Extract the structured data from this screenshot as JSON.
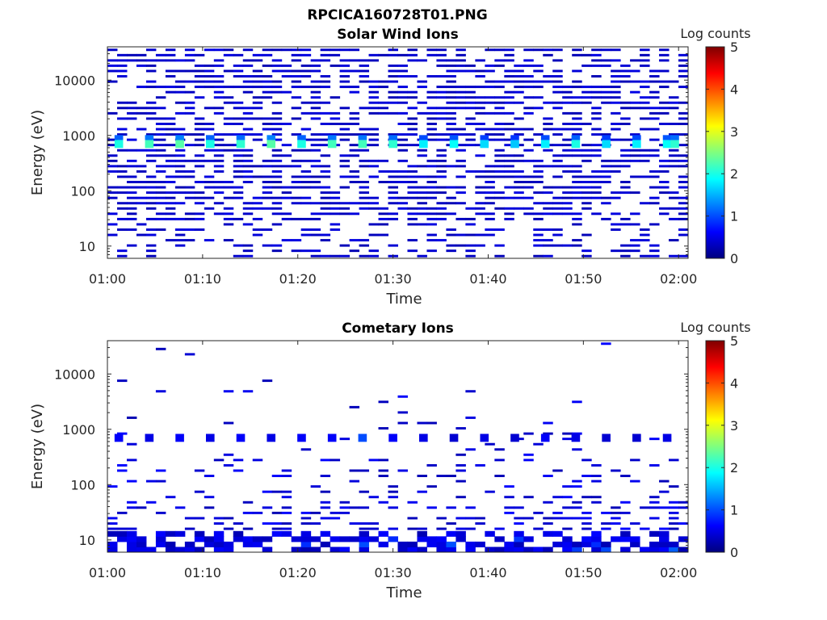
{
  "figure_title": "RPCICA160728T01.PNG",
  "colormap_stops": [
    "#00007f",
    "#0000ff",
    "#007fff",
    "#00ffff",
    "#7fff7f",
    "#ffff00",
    "#ff7f00",
    "#ff0000",
    "#7f0000"
  ],
  "chart_data": [
    {
      "type": "heatmap",
      "title": "Solar Wind Ions",
      "xlabel": "Time",
      "ylabel": "Energy (eV)",
      "x_ticks": [
        "01:00",
        "01:10",
        "01:20",
        "01:30",
        "01:40",
        "01:50",
        "02:00"
      ],
      "x_range_minutes": [
        0,
        61
      ],
      "y_ticks": [
        "10",
        "100",
        "1000",
        "10000"
      ],
      "y_scale": "log",
      "y_range": [
        6,
        40000
      ],
      "colorbar": {
        "label": "Log counts",
        "ticks": [
          "0",
          "1",
          "2",
          "3",
          "4",
          "5"
        ],
        "range": [
          0,
          5
        ]
      },
      "description": "Dense noise (~0-0.5 log counts) at all energies; periodic peaks near 700 eV every ~3.2 min reaching ~2 log counts",
      "peak_energy_eV": 700,
      "peak_times_minutes": [
        1.2,
        4.4,
        7.6,
        10.8,
        14.0,
        17.2,
        20.4,
        23.6,
        26.8,
        30.0,
        33.2,
        36.4,
        39.6,
        42.8,
        46.0,
        49.2,
        52.4,
        55.6,
        58.8,
        59.6
      ],
      "peak_values": [
        2.0,
        2.2,
        2.3,
        2.0,
        2.1,
        2.3,
        2.0,
        2.2,
        2.2,
        2.1,
        1.8,
        1.9,
        1.7,
        1.6,
        1.8,
        2.0,
        1.7,
        1.8,
        1.9,
        2.1
      ]
    },
    {
      "type": "heatmap",
      "title": "Cometary Ions",
      "xlabel": "Time",
      "ylabel": "Energy (eV)",
      "x_ticks": [
        "01:00",
        "01:10",
        "01:20",
        "01:30",
        "01:40",
        "01:50",
        "02:00"
      ],
      "x_range_minutes": [
        0,
        61
      ],
      "y_ticks": [
        "10",
        "100",
        "1000",
        "10000"
      ],
      "y_scale": "log",
      "y_range": [
        6,
        40000
      ],
      "colorbar": {
        "label": "Log counts",
        "ticks": [
          "0",
          "1",
          "2",
          "3",
          "4",
          "5"
        ],
        "range": [
          0,
          5
        ]
      },
      "description": "Counts concentrated below ~300 eV with low-energy dense band at 6-20 eV; periodic ~700 eV blips at ~0.5-1 log counts; sparse high-energy counts",
      "peak_energy_eV": 700,
      "peak_times_minutes": [
        1.2,
        4.4,
        7.6,
        10.8,
        14.0,
        17.2,
        20.4,
        23.6,
        26.8,
        30.0,
        33.2,
        36.4,
        39.6,
        42.8,
        46.0,
        49.2,
        52.4,
        55.6,
        58.8
      ],
      "peak_values": [
        0.6,
        0.5,
        0.6,
        0.5,
        0.6,
        0.5,
        0.6,
        0.6,
        1.0,
        0.6,
        0.5,
        0.4,
        0.5,
        0.4,
        0.6,
        0.5,
        0.4,
        0.4,
        0.5
      ]
    }
  ]
}
